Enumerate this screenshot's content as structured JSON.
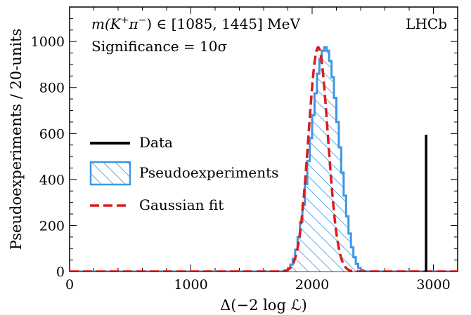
{
  "chart_data": {
    "type": "histogram",
    "xlabel": "Δ(−2 log ℒ)",
    "ylabel": "Pseudoexperiments / 20-units",
    "xlim": [
      0,
      3200
    ],
    "ylim": [
      0,
      1150
    ],
    "x_ticks": [
      0,
      1000,
      2000,
      3000
    ],
    "x_tick_labels": [
      "0",
      "1000",
      "2000",
      "3000"
    ],
    "y_ticks": [
      0,
      200,
      400,
      600,
      800,
      1000
    ],
    "y_tick_labels": [
      "0",
      "200",
      "400",
      "600",
      "800",
      "1000"
    ],
    "annotations": {
      "mass_range": {
        "prefix": "m(K",
        "sup_k": "+",
        "mid": "π",
        "sup_pi": "−",
        "suffix": ") ∈ [1085, 1445] MeV"
      },
      "significance": "Significance = 10σ",
      "experiment": "LHCb"
    },
    "series": [
      {
        "name": "Pseudoexperiments",
        "kind": "hatched-histogram",
        "color": "#3d96e6",
        "bin_width": 20,
        "bin_edges_start": 1760,
        "counts": [
          2,
          6,
          15,
          30,
          55,
          95,
          150,
          215,
          290,
          380,
          480,
          580,
          680,
          775,
          860,
          925,
          960,
          975,
          960,
          915,
          845,
          755,
          650,
          540,
          430,
          330,
          240,
          165,
          105,
          62,
          33,
          16,
          7,
          2
        ]
      },
      {
        "name": "Gaussian fit",
        "kind": "dashed-line",
        "color": "#dd1c1c",
        "mean": 2050,
        "sigma": 80,
        "peak": 975
      },
      {
        "name": "Data",
        "kind": "vertical-line",
        "color": "#000000",
        "x": 2940,
        "height": 595
      }
    ],
    "legend": {
      "position": "left-middle",
      "entries": [
        {
          "label": "Data",
          "style": "solid-black"
        },
        {
          "label": "Pseudoexperiments",
          "style": "hatched-blue"
        },
        {
          "label": "Gaussian fit",
          "style": "dashed-red"
        }
      ]
    }
  }
}
